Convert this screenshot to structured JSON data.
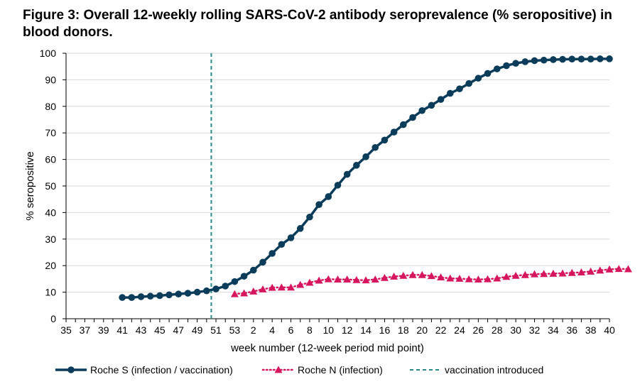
{
  "figure": {
    "title": "Figure 3: Overall 12-weekly rolling SARS-CoV-2 antibody seroprevalence (% seropositive) in blood donors."
  },
  "chart_data": {
    "type": "line",
    "xlabel": "week number (12-week period mid point)",
    "ylabel": "% seropositive",
    "ylim": [
      0,
      100
    ],
    "yticks": [
      0,
      10,
      20,
      30,
      40,
      50,
      60,
      70,
      80,
      90,
      100
    ],
    "x_categories": [
      "35",
      "36",
      "37",
      "38",
      "39",
      "40",
      "41",
      "42",
      "43",
      "44",
      "45",
      "46",
      "47",
      "48",
      "49",
      "50",
      "51",
      "52",
      "53",
      "1",
      "2",
      "3",
      "4",
      "5",
      "6",
      "7",
      "8",
      "9",
      "10",
      "11",
      "12",
      "13",
      "14",
      "15",
      "16",
      "17",
      "18",
      "19",
      "20",
      "21",
      "22",
      "23",
      "24",
      "25",
      "26",
      "27",
      "28",
      "29",
      "30",
      "31",
      "32",
      "33",
      "34",
      "35",
      "36",
      "37",
      "38",
      "39",
      "40"
    ],
    "x_tick_labels": [
      "35",
      "37",
      "39",
      "41",
      "43",
      "45",
      "47",
      "49",
      "51",
      "53",
      "2",
      "4",
      "6",
      "8",
      "10",
      "12",
      "14",
      "16",
      "18",
      "20",
      "22",
      "24",
      "26",
      "28",
      "30",
      "32",
      "34",
      "36",
      "38",
      "40"
    ],
    "grid": "horizontal",
    "legend_position": "bottom",
    "vline": {
      "x_index": 15.5,
      "name": "vaccination introduced",
      "color": "#2a8a8a",
      "style": "dashed"
    },
    "series": [
      {
        "name": "Roche S (infection / vaccination)",
        "color": "#0b3d5a",
        "marker": "circle",
        "line": "solid",
        "start_index": 6,
        "values": [
          8.0,
          8.0,
          8.3,
          8.5,
          8.7,
          9.0,
          9.3,
          9.6,
          10.0,
          10.5,
          11.2,
          12.3,
          14.0,
          16.0,
          18.3,
          21.3,
          24.6,
          28.0,
          30.5,
          34.0,
          38.3,
          43.0,
          46.0,
          50.3,
          54.4,
          57.8,
          61.0,
          64.5,
          67.3,
          70.3,
          73.1,
          75.8,
          78.4,
          80.4,
          82.6,
          84.9,
          86.6,
          88.6,
          90.6,
          92.4,
          94.1,
          95.3,
          96.2,
          96.8,
          97.2,
          97.4,
          97.6,
          97.7,
          97.8,
          97.8,
          97.8,
          97.9,
          97.9
        ]
      },
      {
        "name": "Roche N (infection)",
        "color": "#d6175f",
        "marker": "triangle",
        "line": "dotted",
        "start_index": 18,
        "values": [
          9.3,
          9.6,
          10.3,
          11.1,
          11.7,
          11.8,
          11.8,
          12.8,
          13.6,
          14.4,
          14.9,
          14.8,
          14.8,
          14.6,
          14.5,
          14.8,
          15.4,
          15.9,
          16.2,
          16.5,
          16.5,
          16.1,
          15.6,
          15.2,
          15.1,
          14.9,
          14.8,
          14.9,
          15.2,
          15.8,
          16.2,
          16.5,
          16.8,
          16.9,
          17.0,
          17.1,
          17.3,
          17.5,
          17.8,
          18.2,
          18.6,
          18.8,
          18.7
        ]
      }
    ]
  },
  "legend": [
    {
      "label": "Roche S (infection / vaccination)"
    },
    {
      "label": "Roche N (infection)"
    },
    {
      "label": "vaccination introduced"
    }
  ]
}
